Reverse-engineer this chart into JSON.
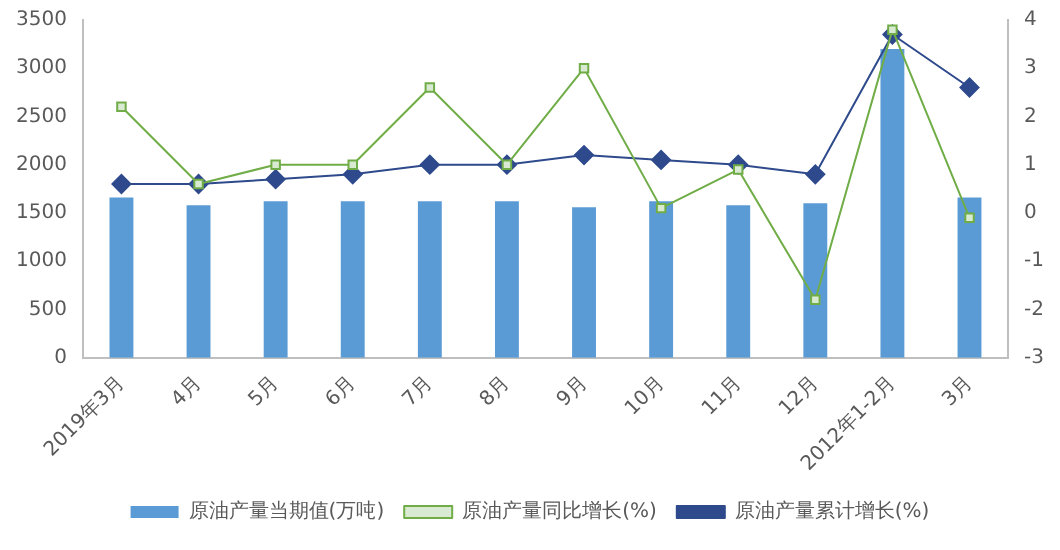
{
  "chart_data": {
    "type": "bar",
    "categories": [
      "2019年3月",
      "4月",
      "5月",
      "6月",
      "7月",
      "8月",
      "9月",
      "10月",
      "11月",
      "12月",
      "2012年1-2月",
      "3月"
    ],
    "series": [
      {
        "name": "原油产量当期值(万吨)",
        "color": "#5b9bd5",
        "values": [
          1660,
          1580,
          1620,
          1620,
          1620,
          1620,
          1560,
          1620,
          1580,
          1600,
          3200,
          1660
        ]
      },
      {
        "name": "原油产量同比增长(%)",
        "type": "line",
        "axis": "y2",
        "color": "#70ad47",
        "marker": "square",
        "values": [
          2.2,
          0.6,
          1.0,
          1.0,
          2.6,
          1.0,
          3.0,
          0.1,
          0.9,
          -1.8,
          3.8,
          -0.1
        ]
      },
      {
        "name": "原油产量累计增长(%)",
        "type": "line",
        "axis": "y2",
        "color": "#2e4a8c",
        "marker": "diamond",
        "values": [
          0.6,
          0.6,
          0.7,
          0.8,
          1.0,
          1.0,
          1.2,
          1.1,
          1.0,
          0.8,
          3.7,
          2.6
        ]
      }
    ],
    "ylim": [
      0,
      3500
    ],
    "yticks": [
      0,
      500,
      1000,
      1500,
      2000,
      2500,
      3000,
      3500
    ],
    "y2lim": [
      -3,
      4
    ],
    "y2ticks": [
      -3,
      -2,
      -1,
      0,
      1,
      2,
      3,
      4
    ],
    "grid": false,
    "legend": "bottom"
  }
}
